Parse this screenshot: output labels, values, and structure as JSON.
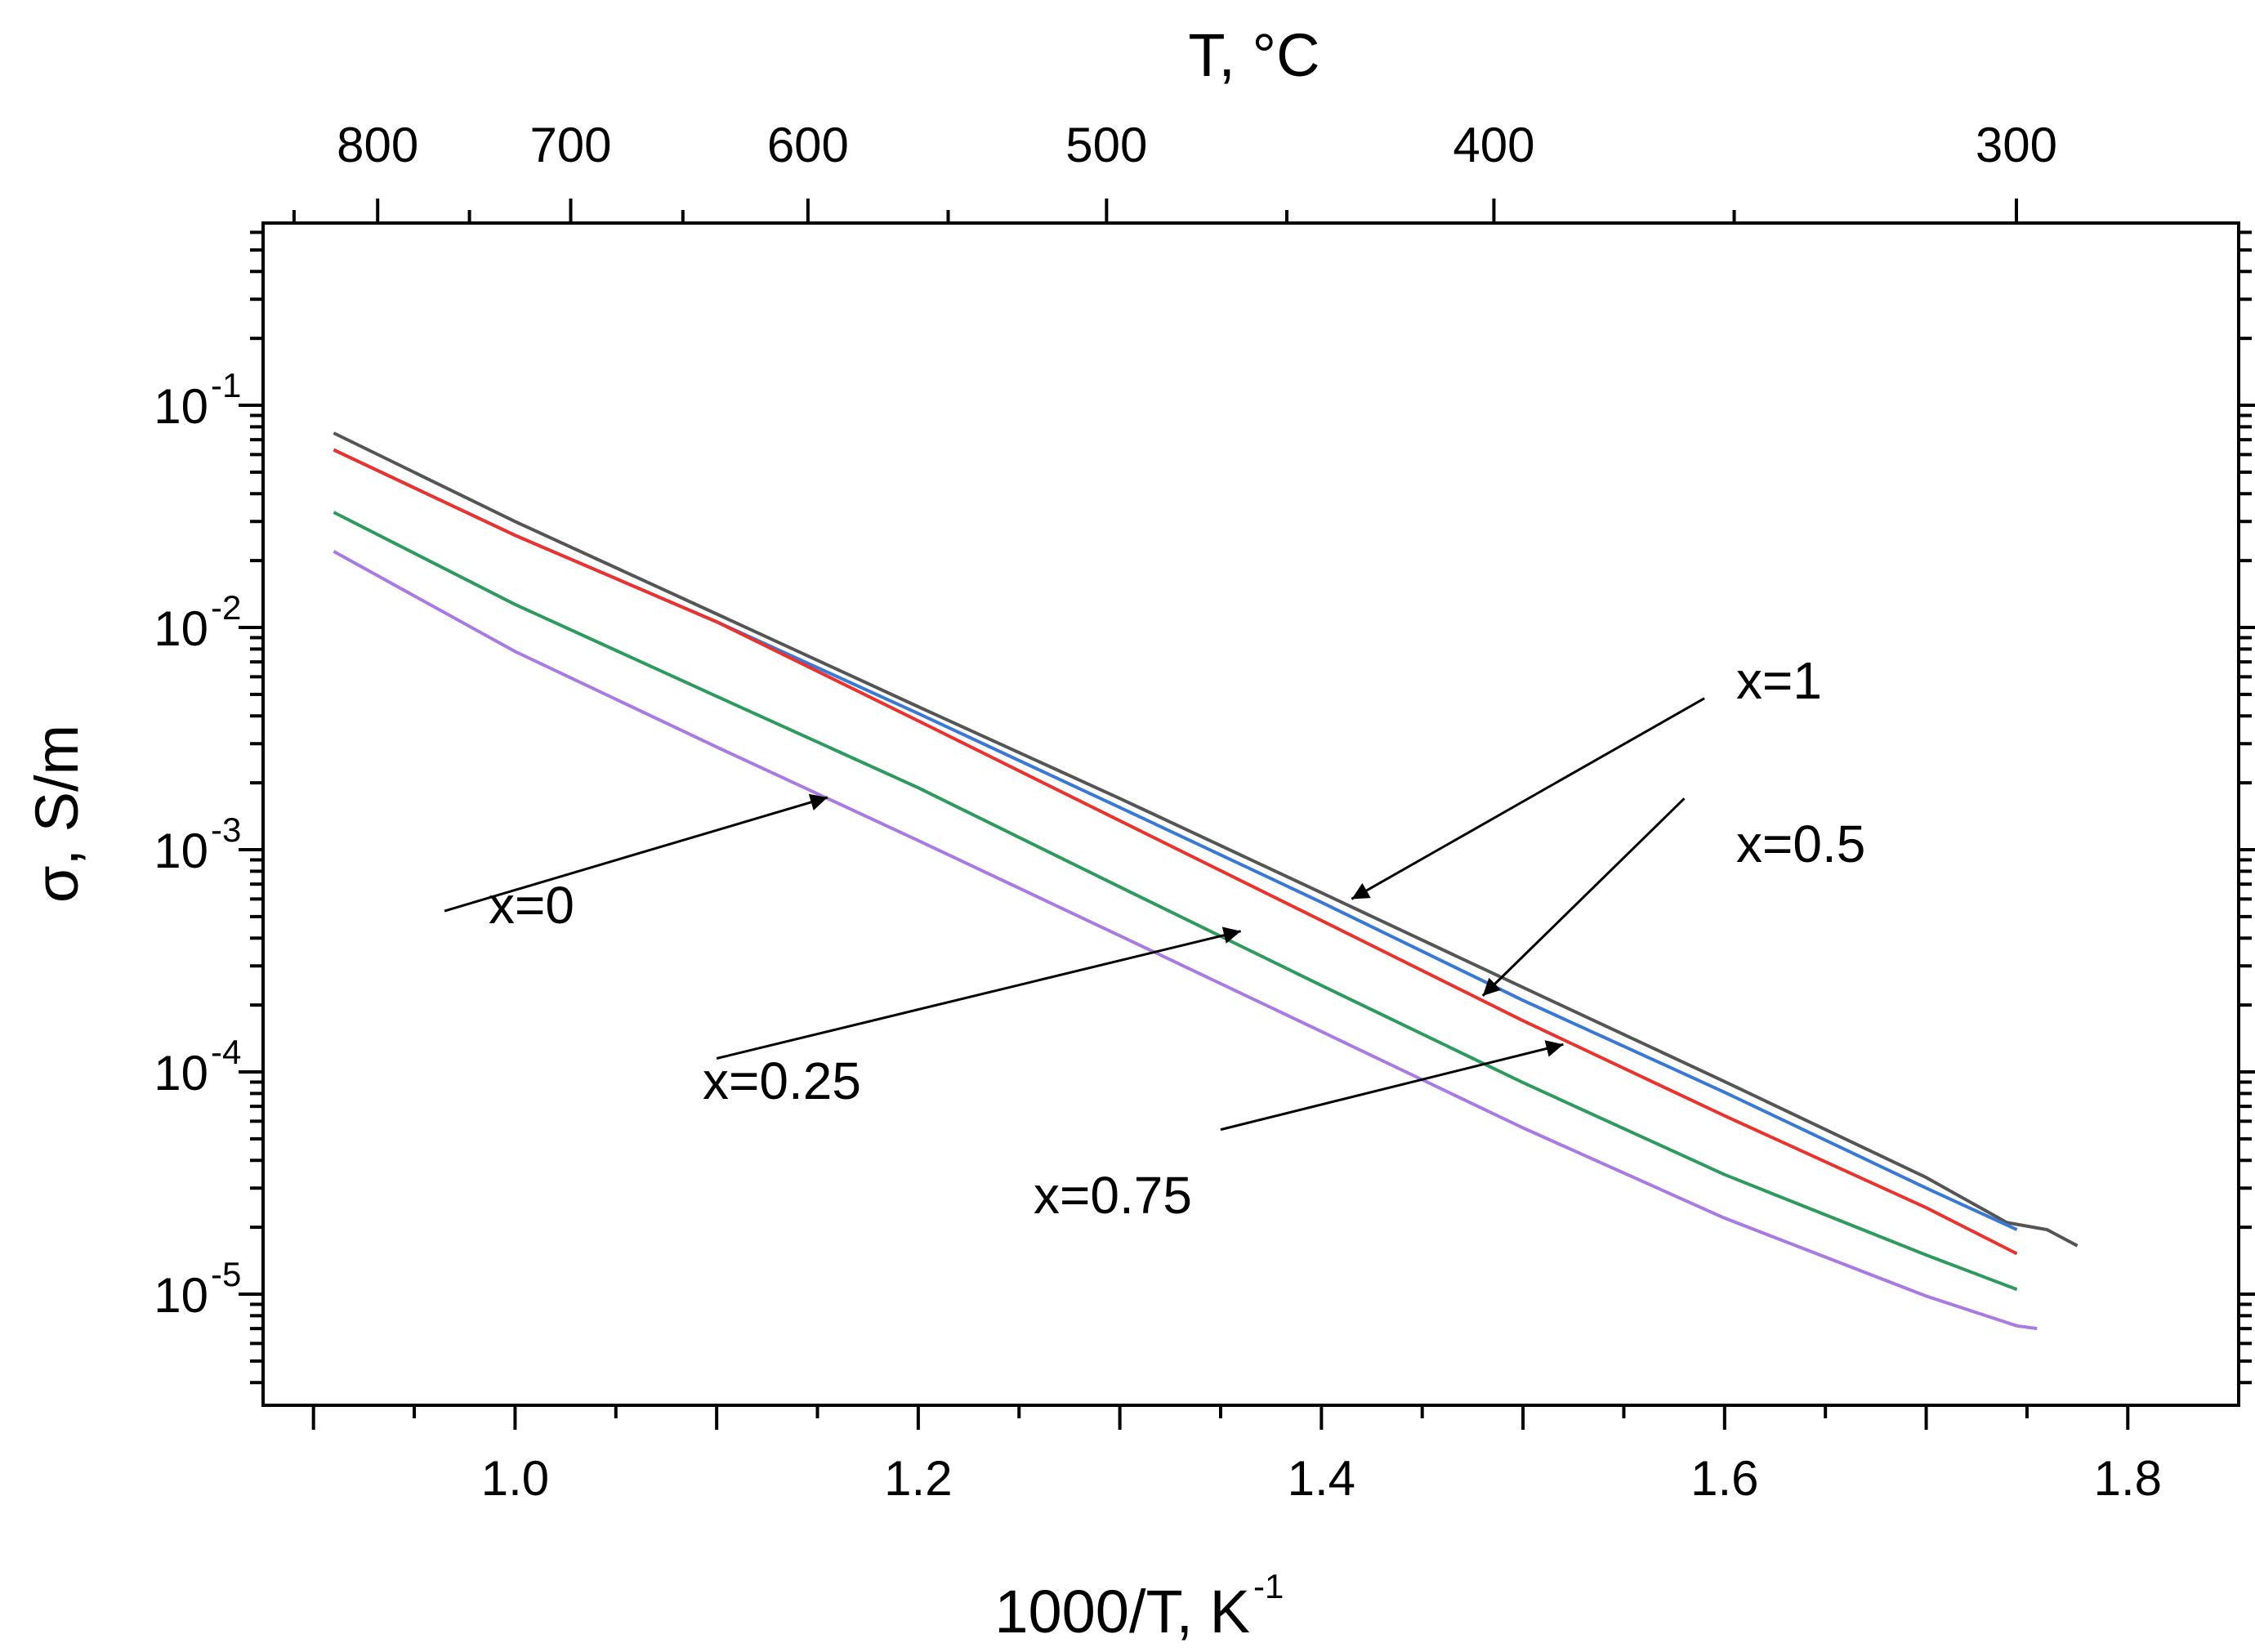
{
  "chart_data": {
    "type": "line",
    "title": "",
    "xlabel": "1000/T, K",
    "xlabel_sup": "-1",
    "ylabel": "σ, S/m",
    "top_xlabel": "T, °C",
    "x_range": [
      0.875,
      1.855
    ],
    "y_range_log10": [
      -5.5,
      -0.18
    ],
    "y_scale": "log",
    "x_ticks": [
      {
        "value": 1.0,
        "label": "1.0"
      },
      {
        "value": 1.2,
        "label": "1.2"
      },
      {
        "value": 1.4,
        "label": "1.4"
      },
      {
        "value": 1.6,
        "label": "1.6"
      },
      {
        "value": 1.8,
        "label": "1.8"
      }
    ],
    "y_ticks": [
      {
        "exp": -1,
        "base": "10",
        "sup": "-1"
      },
      {
        "exp": -2,
        "base": "10",
        "sup": "-2"
      },
      {
        "exp": -3,
        "base": "10",
        "sup": "-3"
      },
      {
        "exp": -4,
        "base": "10",
        "sup": "-4"
      },
      {
        "exp": -5,
        "base": "10",
        "sup": "-5"
      }
    ],
    "top_ticks": [
      {
        "celsius": 800,
        "label": "800"
      },
      {
        "celsius": 700,
        "label": "700"
      },
      {
        "celsius": 600,
        "label": "600"
      },
      {
        "celsius": 500,
        "label": "500"
      },
      {
        "celsius": 400,
        "label": "400"
      },
      {
        "celsius": 300,
        "label": "300"
      }
    ],
    "series": [
      {
        "name": "x=1",
        "color": "#555555",
        "x": [
          0.91,
          1.0,
          1.1,
          1.2,
          1.3,
          1.4,
          1.5,
          1.6,
          1.7,
          1.74,
          1.76,
          1.775
        ],
        "y": [
          0.075,
          0.03,
          0.0115,
          0.0044,
          0.0017,
          0.00064,
          0.00024,
          9.05e-05,
          3.35e-05,
          2.1e-05,
          1.95e-05,
          1.65e-05
        ]
      },
      {
        "name": "x=0.5",
        "color": "#3a78d6",
        "x": [
          0.91,
          1.0,
          1.1,
          1.2,
          1.3,
          1.4,
          1.5,
          1.6,
          1.7,
          1.745
        ],
        "y": [
          0.063,
          0.026,
          0.0106,
          0.0041,
          0.00155,
          0.00058,
          0.00021,
          8.1e-05,
          3e-05,
          1.95e-05
        ]
      },
      {
        "name": "x=0.75",
        "color": "#e8332e",
        "x": [
          0.91,
          1.0,
          1.1,
          1.2,
          1.3,
          1.4,
          1.5,
          1.6,
          1.7,
          1.745
        ],
        "y": [
          0.063,
          0.026,
          0.0106,
          0.0038,
          0.00135,
          0.00048,
          0.00017,
          6.35e-05,
          2.45e-05,
          1.52e-05
        ]
      },
      {
        "name": "x=0.25",
        "color": "#2f9a5e",
        "x": [
          0.91,
          1.0,
          1.1,
          1.2,
          1.3,
          1.4,
          1.5,
          1.6,
          1.7,
          1.745
        ],
        "y": [
          0.033,
          0.0127,
          0.0049,
          0.0019,
          0.00068,
          0.000245,
          8.95e-05,
          3.45e-05,
          1.5e-05,
          1.05e-05
        ]
      },
      {
        "name": "x=0",
        "color": "#a97ae0",
        "x": [
          0.91,
          1.0,
          1.1,
          1.2,
          1.3,
          1.4,
          1.5,
          1.6,
          1.7,
          1.745,
          1.755
        ],
        "y": [
          0.022,
          0.0078,
          0.0029,
          0.0011,
          0.00041,
          0.000152,
          5.6e-05,
          2.2e-05,
          9.8e-06,
          7.2e-06,
          7e-06
        ]
      }
    ],
    "annotations": [
      {
        "text": "x=1",
        "label_x": 1.59,
        "label_y": 0.0048,
        "target_x": 1.415,
        "target_y": 0.0006
      },
      {
        "text": "x=0.5",
        "label_x": 1.58,
        "label_y": 0.0017,
        "target_x": 1.48,
        "target_y": 0.00022
      },
      {
        "text": "x=0.25",
        "label_x": 1.1,
        "label_y": 0.000115,
        "target_x": 1.36,
        "target_y": 0.00043
      },
      {
        "text": "x=0.75",
        "label_x": 1.35,
        "label_y": 5.5e-05,
        "target_x": 1.52,
        "target_y": 0.000133
      },
      {
        "text": "x=0",
        "label_x": 0.965,
        "label_y": 0.00053,
        "target_x": 1.155,
        "target_y": 0.00172
      }
    ]
  }
}
